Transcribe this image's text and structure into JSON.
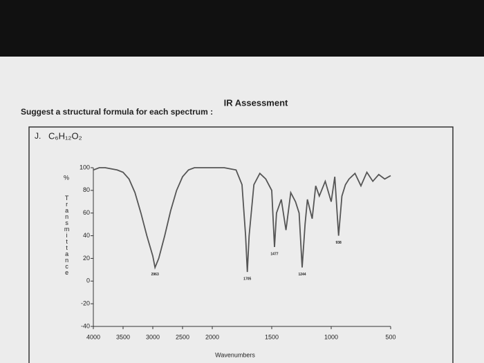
{
  "header": {
    "title": "IR Assessment",
    "instruction": "Suggest a structural formula for each spectrum :"
  },
  "question": {
    "number": "J.",
    "formula": "C₆H₁₂O₂"
  },
  "chart_data": {
    "type": "line",
    "ylabel_unit": "%",
    "ylabel": "Transmittance",
    "xlabel": "Wavenumbers",
    "x": [
      4000,
      3900,
      3800,
      3700,
      3600,
      3500,
      3400,
      3300,
      3200,
      3100,
      3000,
      2963,
      2900,
      2800,
      2700,
      2600,
      2500,
      2400,
      2300,
      2200,
      2100,
      2000,
      1900,
      1800,
      1750,
      1720,
      1705,
      1690,
      1650,
      1600,
      1550,
      1500,
      1477,
      1460,
      1420,
      1380,
      1340,
      1300,
      1270,
      1244,
      1220,
      1200,
      1160,
      1130,
      1100,
      1050,
      1000,
      970,
      938,
      910,
      880,
      850,
      800,
      750,
      700,
      650,
      600,
      550,
      500
    ],
    "series": [
      {
        "color": "#555555",
        "values": [
          98,
          100,
          100,
          99,
          98,
          96,
          90,
          78,
          60,
          40,
          22,
          12,
          20,
          40,
          62,
          80,
          92,
          98,
          100,
          100,
          100,
          100,
          100,
          98,
          85,
          40,
          8,
          40,
          85,
          95,
          90,
          80,
          30,
          60,
          72,
          45,
          78,
          70,
          60,
          12,
          50,
          72,
          55,
          84,
          75,
          88,
          70,
          92,
          40,
          75,
          85,
          90,
          95,
          84,
          96,
          88,
          94,
          90,
          93
        ]
      }
    ],
    "xlim": [
      4000,
      500
    ],
    "xticks": [
      4000,
      3500,
      3000,
      2500,
      2000,
      1500,
      1000,
      500
    ],
    "x_scale_break": 2000,
    "ylim": [
      -40,
      100
    ],
    "yticks": [
      100,
      80,
      60,
      40,
      20,
      0,
      -20,
      -40
    ],
    "annotations": [
      {
        "label": "2963",
        "x": 2963
      },
      {
        "label": "1705",
        "x": 1705
      },
      {
        "label": "1477",
        "x": 1477
      },
      {
        "label": "1244",
        "x": 1244
      },
      {
        "label": "938",
        "x": 938
      }
    ]
  }
}
